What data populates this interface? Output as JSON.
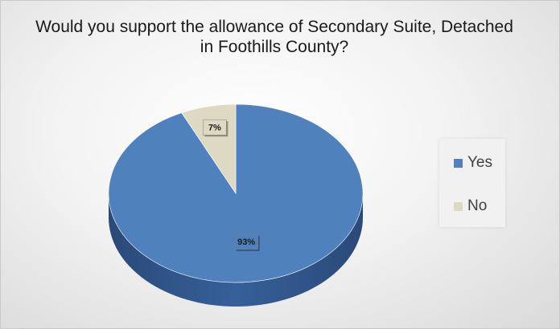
{
  "chart_data": {
    "type": "pie",
    "title": "Would you support the allowance of Secondary Suite, Detached in Foothills County?",
    "categories": [
      "Yes",
      "No"
    ],
    "values": [
      93,
      7
    ],
    "data_labels": [
      "93%",
      "7%"
    ],
    "colors": [
      "#4f81bd",
      "#ddd9c3"
    ],
    "legend_position": "right"
  }
}
